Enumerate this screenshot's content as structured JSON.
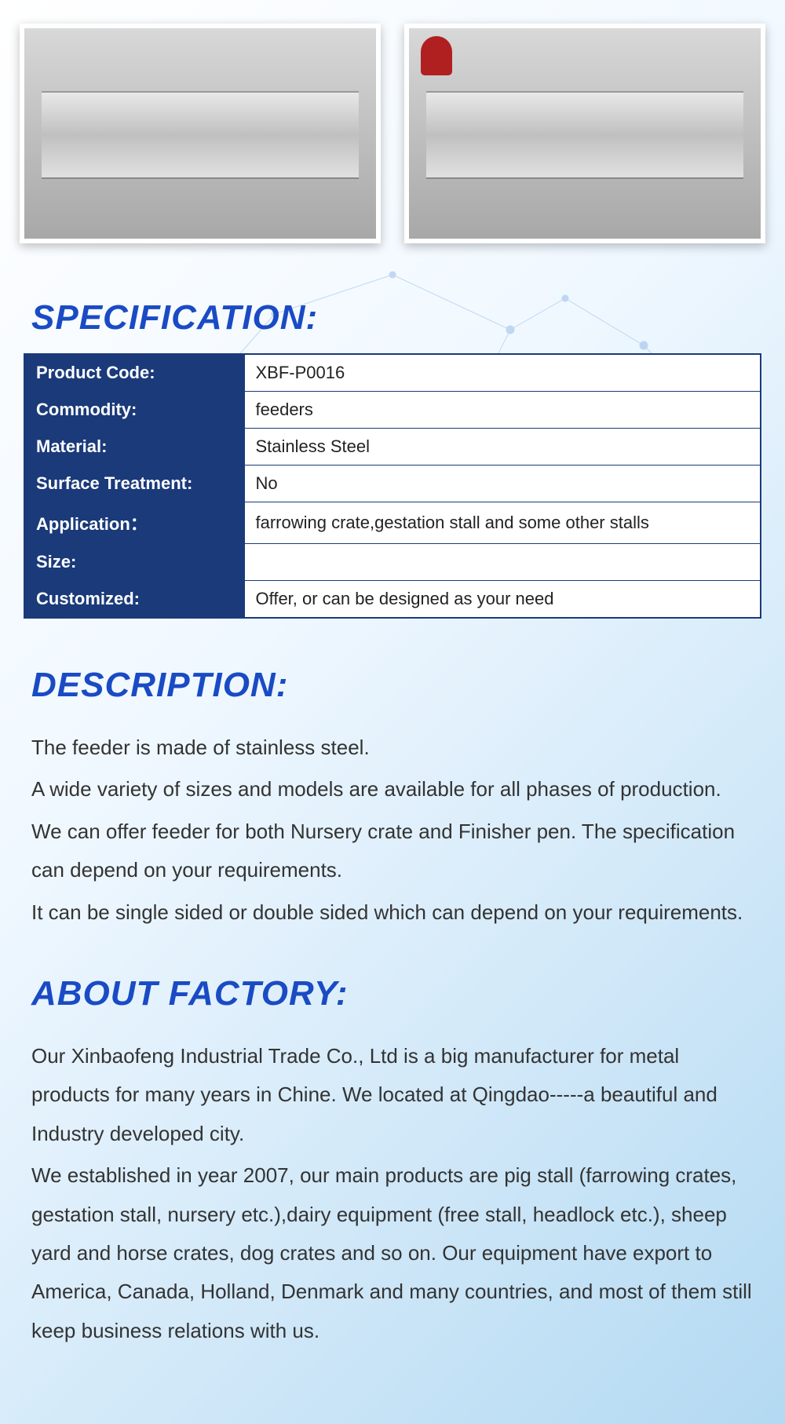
{
  "headings": {
    "specification": "SPECIFICATION:",
    "description": "DESCRIPTION:",
    "about_factory": "ABOUT FACTORY:"
  },
  "spec_table": {
    "rows": [
      {
        "label": "Product Code:",
        "value": "XBF-P0016"
      },
      {
        "label": "Commodity:",
        "value": "feeders"
      },
      {
        "label": "Material:",
        "value": "Stainless Steel"
      },
      {
        "label": "Surface Treatment:",
        "value": "No"
      },
      {
        "label": "Application：",
        "value": "farrowing crate,gestation stall and some other stalls"
      },
      {
        "label": "Size:",
        "value": ""
      },
      {
        "label": "Customized:",
        "value": "Offer, or can be designed as your need"
      }
    ],
    "label_bg": "#1a3a7a",
    "label_color": "#ffffff",
    "value_bg": "#ffffff",
    "border_color": "#1a3a7a"
  },
  "description": {
    "lines": [
      "The feeder is made of stainless steel.",
      "A wide variety of sizes and models are available for all phases of production.",
      "We can offer feeder for both Nursery crate and Finisher pen. The specification can depend on your requirements.",
      "It can be single sided or double sided which can depend on your requirements."
    ]
  },
  "about_factory": {
    "lines": [
      "Our Xinbaofeng Industrial Trade Co., Ltd is a big manufacturer for metal products for many years in Chine. We located at Qingdao-----a beautiful and Industry developed city.",
      "We established in year 2007, our main products are pig stall (farrowing crates, gestation stall, nursery etc.),dairy equipment (free stall, headlock etc.), sheep yard and horse crates, dog crates and so on. Our equipment have export to America, Canada, Holland, Denmark and many countries, and most of them still keep business relations with us."
    ]
  },
  "colors": {
    "heading_color": "#1a4bc4",
    "text_color": "#333333",
    "bg_gradient_start": "#ffffff",
    "bg_gradient_end": "#b3d9f2"
  }
}
